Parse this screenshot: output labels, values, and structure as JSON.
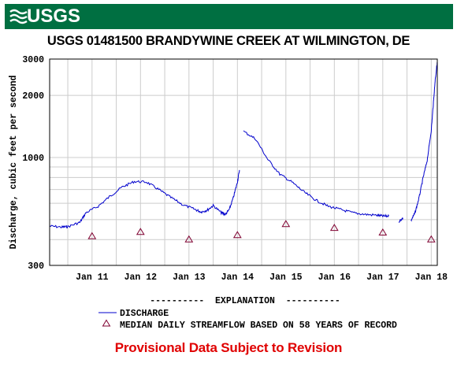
{
  "banner": {
    "logo_text": "USGS"
  },
  "chart_data": {
    "type": "line",
    "title": "USGS 01481500 BRANDYWINE CREEK AT WILMINGTON, DE",
    "ylabel": "Discharge, cubic feet per second",
    "xlabel": "",
    "y_scale": "log",
    "ylim": [
      300,
      3000
    ],
    "y_ticks": [
      300,
      1000,
      2000,
      3000
    ],
    "xlim": [
      "Jan 10 15:00",
      "Jan 18 15:00"
    ],
    "x_ticks": [
      "Jan 11",
      "Jan 12",
      "Jan 13",
      "Jan 14",
      "Jan 15",
      "Jan 16",
      "Jan 17",
      "Jan 18"
    ],
    "grid": true,
    "series": [
      {
        "name": "DISCHARGE",
        "color": "#0000cc",
        "segments": [
          [
            [
              "Jan 10 15:00",
              465
            ],
            [
              "Jan 10 21:00",
              460
            ],
            [
              "Jan 11 00:00",
              462
            ],
            [
              "Jan 11 06:00",
              485
            ],
            [
              "Jan 11 09:00",
              540
            ],
            [
              "Jan 11 15:00",
              580
            ],
            [
              "Jan 11 21:00",
              650
            ],
            [
              "Jan 12 03:00",
              720
            ],
            [
              "Jan 12 09:00",
              765
            ],
            [
              "Jan 12 15:00",
              760
            ],
            [
              "Jan 12 21:00",
              700
            ],
            [
              "Jan 13 03:00",
              640
            ],
            [
              "Jan 13 09:00",
              590
            ],
            [
              "Jan 13 15:00",
              560
            ],
            [
              "Jan 13 18:00",
              545
            ],
            [
              "Jan 13 21:00",
              555
            ],
            [
              "Jan 14 00:00",
              585
            ],
            [
              "Jan 14 04:00",
              540
            ],
            [
              "Jan 14 06:00",
              530
            ],
            [
              "Jan 14 08:00",
              560
            ],
            [
              "Jan 14 10:00",
              640
            ],
            [
              "Jan 14 12:00",
              760
            ],
            [
              "Jan 14 13:00",
              870
            ]
          ],
          [
            [
              "Jan 14 15:00",
              1340
            ],
            [
              "Jan 14 21:00",
              1230
            ],
            [
              "Jan 15 03:00",
              980
            ],
            [
              "Jan 15 09:00",
              830
            ],
            [
              "Jan 15 15:00",
              760
            ],
            [
              "Jan 15 21:00",
              680
            ],
            [
              "Jan 16 03:00",
              620
            ],
            [
              "Jan 16 09:00",
              580
            ],
            [
              "Jan 16 15:00",
              560
            ],
            [
              "Jan 16 21:00",
              540
            ],
            [
              "Jan 17 03:00",
              530
            ],
            [
              "Jan 17 09:00",
              525
            ],
            [
              "Jan 17 12:00",
              520
            ],
            [
              "Jan 17 15:00",
              520
            ]
          ],
          [
            [
              "Jan 17 20:00",
              490
            ],
            [
              "Jan 17 22:00",
              510
            ]
          ],
          [
            [
              "Jan 18 02:00",
              495
            ],
            [
              "Jan 18 04:00",
              540
            ],
            [
              "Jan 18 06:00",
              640
            ],
            [
              "Jan 18 08:00",
              800
            ],
            [
              "Jan 18 10:00",
              970
            ],
            [
              "Jan 18 12:00",
              1350
            ],
            [
              "Jan 18 13:00",
              1800
            ],
            [
              "Jan 18 14:00",
              2400
            ],
            [
              "Jan 18 15:00",
              2900
            ]
          ]
        ]
      },
      {
        "name": "MEDIAN DAILY STREAMFLOW BASED ON 58 YEARS OF RECORD",
        "color": "#7f0030",
        "marker": "triangle",
        "points": [
          [
            "Jan 11",
            415
          ],
          [
            "Jan 12",
            435
          ],
          [
            "Jan 13",
            400
          ],
          [
            "Jan 14",
            420
          ],
          [
            "Jan 15",
            475
          ],
          [
            "Jan 16",
            455
          ],
          [
            "Jan 17",
            432
          ],
          [
            "Jan 18",
            400
          ]
        ]
      }
    ],
    "legend": {
      "placement": "bottom",
      "heading": "----------  EXPLANATION  ----------",
      "entries": [
        "DISCHARGE",
        "MEDIAN DAILY STREAMFLOW BASED ON 58 YEARS OF RECORD"
      ]
    }
  },
  "footer": {
    "provisional": "Provisional Data Subject to Revision"
  }
}
